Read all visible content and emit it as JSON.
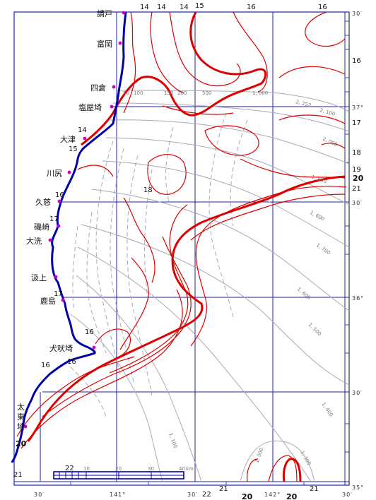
{
  "colors": {
    "coast": "#0000aa",
    "grid": "#2222aa",
    "isotherm": "#dd0000",
    "isobath": "#a8a8b8",
    "place_marker": "#cc00cc"
  },
  "places": [
    "請戸",
    "富岡",
    "四倉",
    "塩屋埼",
    "大津",
    "川尻",
    "久慈",
    "磯崎",
    "大洗",
    "汲上",
    "鹿島",
    "犬吠埼",
    "太",
    "東",
    "埼"
  ],
  "lon_labels": [
    "30′",
    "141°",
    "30′",
    "142°",
    "30′"
  ],
  "lat_labels": [
    "30′",
    "37°",
    "30′",
    "36°",
    "30′",
    "35°"
  ],
  "sst_labels": {
    "top": [
      "14",
      "14",
      "14",
      "15",
      "16",
      "16"
    ],
    "right": [
      "16",
      "17",
      "18",
      "19",
      "20",
      "21"
    ],
    "coast": [
      "14",
      "15",
      "16",
      "17",
      "17",
      "16",
      "16",
      "16",
      "20",
      "21"
    ],
    "inner": [
      "18"
    ],
    "bottom": [
      "22",
      "21",
      "20",
      "20",
      "21",
      "22"
    ]
  },
  "depth_labels": [
    "50",
    "100",
    "150",
    "200",
    "500",
    "1, 000",
    "1, 600",
    "1, 700",
    "1, 600",
    "1, 500",
    "1, 400",
    "1, 100",
    "1, 300",
    "1, 300",
    "1, 900",
    "2, 000",
    "2, 100",
    "2, 252"
  ],
  "scale_bar": {
    "ticks": [
      "10",
      "20",
      "30",
      "40"
    ],
    "unit": "km"
  }
}
